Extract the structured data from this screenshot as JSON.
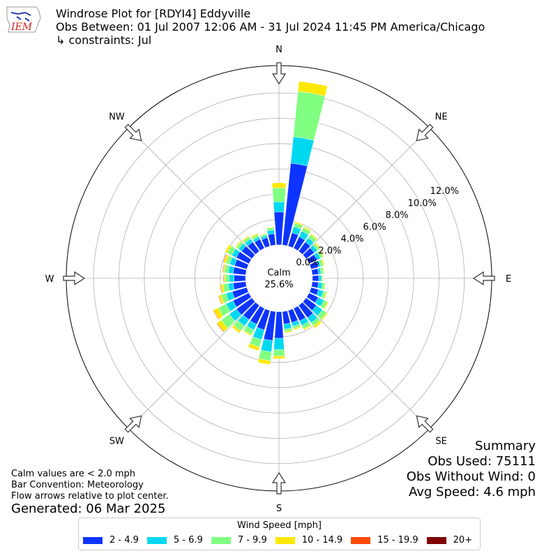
{
  "header": {
    "title": "Windrose Plot for [RDYI4] Eddyville",
    "obs_line": "Obs Between: 01 Jul 2007 12:06 AM - 31 Jul 2024 11:45 PM America/Chicago",
    "constraints": "↳ constraints: Jul"
  },
  "logo_text": "IEM",
  "footnote": {
    "line1": "Calm values are < 2.0 mph",
    "line2": "Bar Convention: Meteorology",
    "line3": "Flow arrows relative to plot center."
  },
  "generated": "Generated: 06 Mar 2025",
  "summary": {
    "title": "Summary",
    "obs_used": "Obs Used: 75111",
    "obs_without_wind": "Obs Without Wind: 0",
    "avg_speed": "Avg Speed: 4.6 mph"
  },
  "chart_data": {
    "type": "windrose",
    "calm_label": "Calm",
    "calm_value": "25.6%",
    "compass": [
      "N",
      "NE",
      "E",
      "SE",
      "S",
      "SW",
      "W",
      "NW"
    ],
    "radial_ticks": [
      0,
      2,
      4,
      6,
      8,
      10,
      12
    ],
    "radial_tick_labels": [
      "0.0%",
      "2.0%",
      "4.0%",
      "6.0%",
      "8.0%",
      "10.0%",
      "12.0%"
    ],
    "rmax": 13.5,
    "bin_centers_deg": [
      0,
      10,
      20,
      30,
      40,
      50,
      60,
      70,
      80,
      90,
      100,
      110,
      120,
      130,
      140,
      150,
      160,
      170,
      180,
      190,
      200,
      210,
      220,
      230,
      240,
      250,
      260,
      270,
      280,
      290,
      300,
      310,
      320,
      330,
      340,
      350
    ],
    "legend_title": "Wind Speed [mph]",
    "series": [
      {
        "name": "2 - 4.9",
        "color": "#0d34ff",
        "values": [
          2.6,
          6.5,
          1.1,
          1.0,
          0.9,
          0.8,
          0.7,
          0.6,
          0.5,
          0.5,
          0.5,
          0.6,
          0.8,
          1.0,
          1.2,
          1.1,
          1.0,
          1.0,
          2.1,
          2.3,
          1.6,
          1.4,
          1.4,
          1.5,
          1.4,
          1.2,
          1.0,
          0.9,
          1.0,
          1.0,
          1.1,
          1.0,
          0.9,
          0.8,
          0.7,
          0.9
        ]
      },
      {
        "name": "5 - 6.9",
        "color": "#00d8f0",
        "values": [
          0.8,
          2.1,
          0.5,
          0.5,
          0.4,
          0.3,
          0.3,
          0.2,
          0.2,
          0.2,
          0.3,
          0.4,
          0.5,
          0.6,
          0.5,
          0.4,
          0.3,
          0.4,
          0.9,
          0.9,
          0.8,
          0.5,
          0.6,
          0.7,
          0.6,
          0.5,
          0.4,
          0.4,
          0.4,
          0.4,
          0.4,
          0.3,
          0.3,
          0.2,
          0.2,
          0.3
        ]
      },
      {
        "name": "7 - 9.9",
        "color": "#80ff80",
        "values": [
          1.1,
          3.6,
          0.3,
          0.3,
          0.3,
          0.2,
          0.2,
          0.2,
          0.2,
          0.1,
          0.2,
          0.2,
          0.3,
          0.4,
          0.3,
          0.3,
          0.2,
          0.2,
          0.5,
          0.7,
          0.6,
          0.4,
          0.5,
          0.8,
          0.7,
          0.4,
          0.4,
          0.3,
          0.3,
          0.3,
          0.4,
          0.2,
          0.2,
          0.2,
          0.1,
          0.2
        ]
      },
      {
        "name": "10 - 14.9",
        "color": "#ffe800",
        "values": [
          0.4,
          0.8,
          0.1,
          0.1,
          0.1,
          0.1,
          0.1,
          0.1,
          0.05,
          0.05,
          0.05,
          0.1,
          0.1,
          0.1,
          0.2,
          0.1,
          0.1,
          0.1,
          0.2,
          0.3,
          0.3,
          0.1,
          0.2,
          0.4,
          0.4,
          0.2,
          0.2,
          0.1,
          0.1,
          0.2,
          0.2,
          0.1,
          0.1,
          0.1,
          0.05,
          0.05
        ]
      },
      {
        "name": "15 - 19.9",
        "color": "#ff4a00",
        "values": [
          0,
          0,
          0,
          0,
          0,
          0,
          0,
          0,
          0,
          0,
          0,
          0,
          0,
          0,
          0,
          0,
          0,
          0,
          0,
          0,
          0,
          0,
          0,
          0.05,
          0.05,
          0.05,
          0.05,
          0.05,
          0.05,
          0.05,
          0,
          0,
          0,
          0,
          0,
          0
        ]
      },
      {
        "name": "20+",
        "color": "#7f0000",
        "values": [
          0,
          0,
          0,
          0,
          0,
          0,
          0,
          0,
          0,
          0,
          0,
          0,
          0,
          0,
          0,
          0,
          0,
          0,
          0,
          0,
          0,
          0,
          0,
          0,
          0,
          0,
          0,
          0,
          0,
          0,
          0,
          0,
          0,
          0,
          0,
          0
        ]
      }
    ]
  }
}
